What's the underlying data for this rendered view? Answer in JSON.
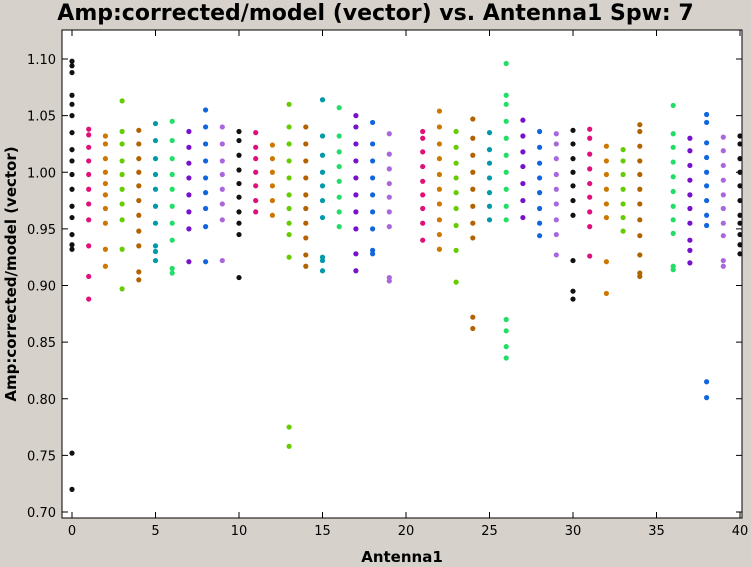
{
  "chart_data": {
    "type": "scatter",
    "title": "Amp:corrected/model (vector) vs. Antenna1 Spw: 7",
    "xlabel": "Antenna1",
    "ylabel": "Amp:corrected/model (vector)",
    "xlim": [
      0,
      40
    ],
    "ylim": [
      0.7,
      1.1
    ],
    "xticks": [
      0,
      5,
      10,
      15,
      20,
      25,
      30,
      35,
      40
    ],
    "yticks": [
      0.7,
      0.75,
      0.8,
      0.85,
      0.9,
      0.95,
      1.0,
      1.05,
      1.1
    ],
    "ytick_labels": [
      "0.70",
      "0.75",
      "0.80",
      "0.85",
      "0.90",
      "0.95",
      "1.00",
      "1.05",
      "1.10"
    ],
    "grid": false,
    "legend": "none",
    "series": [
      {
        "color": "#111111",
        "x": 0,
        "y": [
          0.72,
          0.752,
          0.932,
          0.936,
          0.945,
          0.96,
          0.97,
          0.985,
          0.998,
          1.01,
          1.02,
          1.035,
          1.05,
          1.06,
          1.068,
          1.088,
          1.094,
          1.098
        ]
      },
      {
        "color": "#e0107a",
        "x": 1,
        "y": [
          0.888,
          0.908,
          0.935,
          0.958,
          0.972,
          0.985,
          0.998,
          1.01,
          1.022,
          1.033,
          1.038
        ]
      },
      {
        "color": "#cc7700",
        "x": 2,
        "y": [
          0.917,
          0.932,
          0.955,
          0.968,
          0.98,
          0.99,
          1.0,
          1.012,
          1.025,
          1.032
        ]
      },
      {
        "color": "#66cc00",
        "x": 3,
        "y": [
          0.897,
          0.932,
          0.958,
          0.972,
          0.985,
          0.998,
          1.01,
          1.025,
          1.036,
          1.063
        ]
      },
      {
        "color": "#b36200",
        "x": 4,
        "y": [
          0.905,
          0.912,
          0.935,
          0.948,
          0.962,
          0.975,
          0.988,
          1.0,
          1.012,
          1.025,
          1.037
        ]
      },
      {
        "color": "#0099aa",
        "x": 5,
        "y": [
          0.922,
          0.93,
          0.935,
          0.955,
          0.97,
          0.985,
          0.998,
          1.012,
          1.028,
          1.043
        ]
      },
      {
        "color": "#22dd66",
        "x": 6,
        "y": [
          0.911,
          0.915,
          0.94,
          0.955,
          0.97,
          0.985,
          0.998,
          1.012,
          1.028,
          1.045
        ]
      },
      {
        "color": "#7711cc",
        "x": 7,
        "y": [
          0.921,
          0.95,
          0.965,
          0.98,
          0.995,
          1.008,
          1.022,
          1.036
        ]
      },
      {
        "color": "#1166dd",
        "x": 8,
        "y": [
          0.921,
          0.952,
          0.968,
          0.982,
          0.995,
          1.01,
          1.025,
          1.04,
          1.055
        ]
      },
      {
        "color": "#aa66dd",
        "x": 9,
        "y": [
          0.922,
          0.958,
          0.972,
          0.985,
          0.998,
          1.01,
          1.025,
          1.04
        ]
      },
      {
        "color": "#111111",
        "x": 10,
        "y": [
          0.907,
          0.945,
          0.955,
          0.965,
          0.978,
          0.99,
          1.002,
          1.015,
          1.028,
          1.036
        ]
      },
      {
        "color": "#e0107a",
        "x": 11,
        "y": [
          0.965,
          0.975,
          0.988,
          1.0,
          1.012,
          1.022,
          1.035
        ]
      },
      {
        "color": "#cc7700",
        "x": 12,
        "y": [
          0.962,
          0.975,
          0.988,
          1.0,
          1.012,
          1.024
        ]
      },
      {
        "color": "#66cc00",
        "x": 13,
        "y": [
          0.758,
          0.775,
          0.925,
          0.945,
          0.955,
          0.968,
          0.98,
          0.995,
          1.01,
          1.025,
          1.04,
          1.06
        ]
      },
      {
        "color": "#b36200",
        "x": 14,
        "y": [
          0.917,
          0.927,
          0.942,
          0.955,
          0.968,
          0.98,
          0.995,
          1.01,
          1.025,
          1.04
        ]
      },
      {
        "color": "#0099aa",
        "x": 15,
        "y": [
          0.913,
          0.922,
          0.925,
          0.96,
          0.975,
          0.988,
          1.0,
          1.015,
          1.032,
          1.064
        ]
      },
      {
        "color": "#22dd66",
        "x": 16,
        "y": [
          0.952,
          0.965,
          0.978,
          0.992,
          1.005,
          1.018,
          1.032,
          1.057
        ]
      },
      {
        "color": "#7711cc",
        "x": 17,
        "y": [
          0.913,
          0.928,
          0.95,
          0.965,
          0.98,
          0.995,
          1.01,
          1.025,
          1.04,
          1.05
        ]
      },
      {
        "color": "#1166dd",
        "x": 18,
        "y": [
          0.928,
          0.931,
          0.95,
          0.965,
          0.98,
          0.995,
          1.01,
          1.025,
          1.044
        ]
      },
      {
        "color": "#aa66dd",
        "x": 19,
        "y": [
          0.904,
          0.907,
          0.952,
          0.965,
          0.978,
          0.99,
          1.003,
          1.016,
          1.034
        ]
      },
      {
        "color": "#e0107a",
        "x": 21,
        "y": [
          0.94,
          0.955,
          0.968,
          0.98,
          0.992,
          1.005,
          1.018,
          1.03,
          1.036
        ]
      },
      {
        "color": "#cc7700",
        "x": 22,
        "y": [
          0.932,
          0.945,
          0.958,
          0.972,
          0.985,
          0.998,
          1.012,
          1.025,
          1.04,
          1.054
        ]
      },
      {
        "color": "#66cc00",
        "x": 23,
        "y": [
          0.903,
          0.931,
          0.953,
          0.968,
          0.982,
          0.995,
          1.008,
          1.022,
          1.036
        ]
      },
      {
        "color": "#b36200",
        "x": 24,
        "y": [
          0.862,
          0.872,
          0.942,
          0.955,
          0.97,
          0.985,
          1.0,
          1.015,
          1.03,
          1.047
        ]
      },
      {
        "color": "#0099aa",
        "x": 25,
        "y": [
          0.958,
          0.97,
          0.982,
          0.995,
          1.008,
          1.02,
          1.035
        ]
      },
      {
        "color": "#22dd66",
        "x": 26,
        "y": [
          0.836,
          0.846,
          0.86,
          0.87,
          0.958,
          0.97,
          0.985,
          1.0,
          1.015,
          1.03,
          1.045,
          1.06,
          1.068,
          1.096
        ]
      },
      {
        "color": "#7711cc",
        "x": 27,
        "y": [
          0.96,
          0.975,
          0.99,
          1.005,
          1.018,
          1.032,
          1.046
        ]
      },
      {
        "color": "#1166dd",
        "x": 28,
        "y": [
          0.944,
          0.955,
          0.968,
          0.982,
          0.995,
          1.008,
          1.022,
          1.036
        ]
      },
      {
        "color": "#aa66dd",
        "x": 29,
        "y": [
          0.927,
          0.945,
          0.958,
          0.972,
          0.985,
          0.998,
          1.012,
          1.025,
          1.034
        ]
      },
      {
        "color": "#111111",
        "x": 30,
        "y": [
          0.888,
          0.895,
          0.922,
          0.962,
          0.975,
          0.988,
          1.0,
          1.012,
          1.025,
          1.037
        ]
      },
      {
        "color": "#e0107a",
        "x": 31,
        "y": [
          0.926,
          0.952,
          0.965,
          0.978,
          0.99,
          1.003,
          1.016,
          1.03,
          1.038
        ]
      },
      {
        "color": "#cc7700",
        "x": 32,
        "y": [
          0.893,
          0.921,
          0.96,
          0.972,
          0.985,
          0.998,
          1.01,
          1.023
        ]
      },
      {
        "color": "#66cc00",
        "x": 33,
        "y": [
          0.948,
          0.96,
          0.972,
          0.985,
          0.998,
          1.01,
          1.02
        ]
      },
      {
        "color": "#b36200",
        "x": 34,
        "y": [
          0.908,
          0.911,
          0.927,
          0.944,
          0.958,
          0.972,
          0.985,
          0.998,
          1.01,
          1.023,
          1.036,
          1.042
        ]
      },
      {
        "color": "#22dd66",
        "x": 36,
        "y": [
          0.914,
          0.917,
          0.946,
          0.958,
          0.97,
          0.983,
          0.996,
          1.009,
          1.022,
          1.034,
          1.059
        ]
      },
      {
        "color": "#7711cc",
        "x": 37,
        "y": [
          0.92,
          0.931,
          0.94,
          0.955,
          0.968,
          0.98,
          0.993,
          1.006,
          1.019,
          1.03
        ]
      },
      {
        "color": "#1166dd",
        "x": 38,
        "y": [
          0.801,
          0.815,
          0.953,
          0.962,
          0.975,
          0.988,
          1.0,
          1.013,
          1.026,
          1.044,
          1.051
        ]
      },
      {
        "color": "#aa66dd",
        "x": 39,
        "y": [
          0.917,
          0.922,
          0.944,
          0.955,
          0.968,
          0.98,
          0.993,
          1.006,
          1.019,
          1.031
        ]
      },
      {
        "color": "#111111",
        "x": 40,
        "y": [
          0.928,
          0.936,
          0.945,
          0.955,
          0.962,
          0.975,
          0.988,
          1.0,
          1.012,
          1.025,
          1.032
        ]
      }
    ]
  }
}
